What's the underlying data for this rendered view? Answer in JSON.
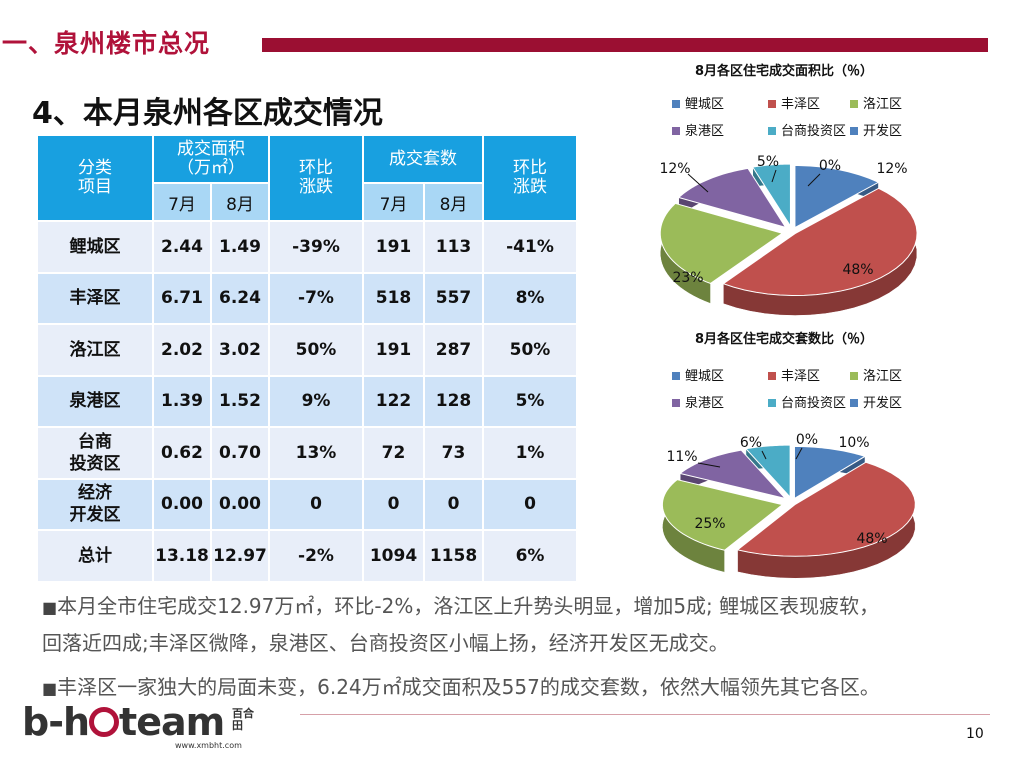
{
  "header": {
    "section_title": "一、泉州楼市总况",
    "page_title": "4、本月泉州各区成交情况"
  },
  "table": {
    "col_category": "分类\n项目",
    "col_area": "成交面积\n（万㎡）",
    "col_area_change": "环比\n涨跌",
    "col_units": "成交套数",
    "col_units_change": "环比\n涨跌",
    "month_jul": "7月",
    "month_aug": "8月",
    "rows": [
      {
        "name": "鲤城区",
        "area_jul": "2.44",
        "area_aug": "1.49",
        "area_chg": "-39%",
        "units_jul": "191",
        "units_aug": "113",
        "units_chg": "-41%"
      },
      {
        "name": "丰泽区",
        "area_jul": "6.71",
        "area_aug": "6.24",
        "area_chg": "-7%",
        "units_jul": "518",
        "units_aug": "557",
        "units_chg": "8%"
      },
      {
        "name": "洛江区",
        "area_jul": "2.02",
        "area_aug": "3.02",
        "area_chg": "50%",
        "units_jul": "191",
        "units_aug": "287",
        "units_chg": "50%"
      },
      {
        "name": "泉港区",
        "area_jul": "1.39",
        "area_aug": "1.52",
        "area_chg": "9%",
        "units_jul": "122",
        "units_aug": "128",
        "units_chg": "5%"
      },
      {
        "name": "台商\n投资区",
        "area_jul": "0.62",
        "area_aug": "0.70",
        "area_chg": "13%",
        "units_jul": "72",
        "units_aug": "73",
        "units_chg": "1%"
      },
      {
        "name": "经济\n开发区",
        "area_jul": "0.00",
        "area_aug": "0.00",
        "area_chg": "0",
        "units_jul": "0",
        "units_aug": "0",
        "units_chg": "0"
      },
      {
        "name": "总计",
        "area_jul": "13.18",
        "area_aug": "12.97",
        "area_chg": "-2%",
        "units_jul": "1094",
        "units_aug": "1158",
        "units_chg": "6%"
      }
    ]
  },
  "bullets": {
    "b1_line1": "本月全市住宅成交12.97万㎡，环比-2%，洛江区上升势头明显，增加5成; 鲤城区表现疲软，",
    "b1_line2": "回落近四成;丰泽区微降，泉港区、台商投资区小幅上扬，经济开发区无成交。",
    "b2": "丰泽区一家独大的局面未变，6.24万㎡成交面积及557的成交套数，依然大幅领先其它各区。",
    "bullet_glyph": "■"
  },
  "footer": {
    "logo_text_1": "b-h",
    "logo_text_2": "team",
    "logo_cn": "百合田",
    "logo_url": "www.xmbht.com",
    "page_number": "10"
  },
  "colors": {
    "lichen": "#4f81bd",
    "fengze": "#c0504d",
    "luojiang": "#9bbb59",
    "quangang": "#8064a2",
    "taishang": "#4bacc6",
    "kaifa": "#4f81bd",
    "accent": "#9b0f32",
    "table_header": "#18a0e0"
  },
  "chart_data": [
    {
      "type": "pie",
      "title": "8月各区住宅成交面积比（％）",
      "categories": [
        "鲤城区",
        "丰泽区",
        "洛江区",
        "泉港区",
        "台商投资区",
        "开发区"
      ],
      "values": [
        12,
        48,
        23,
        12,
        5,
        0
      ],
      "labels": [
        "12%",
        "48%",
        "23%",
        "12%",
        "5%",
        "0%"
      ],
      "legend": "top",
      "style": "3d-exploded"
    },
    {
      "type": "pie",
      "title": "8月各区住宅成交套数比（％）",
      "categories": [
        "鲤城区",
        "丰泽区",
        "洛江区",
        "泉港区",
        "台商投资区",
        "开发区"
      ],
      "values": [
        10,
        48,
        25,
        11,
        6,
        0
      ],
      "labels": [
        "10%",
        "48%",
        "25%",
        "11%",
        "6%",
        "0%"
      ],
      "legend": "top",
      "style": "3d-exploded"
    }
  ]
}
